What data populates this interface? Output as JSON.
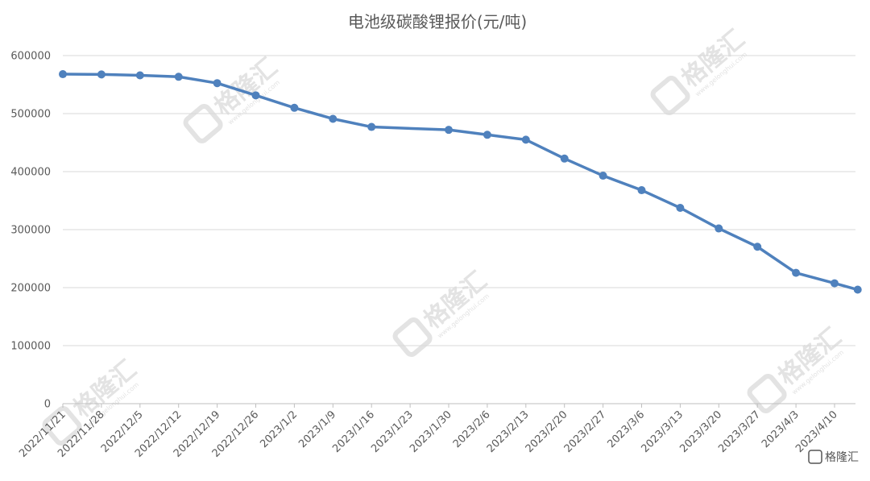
{
  "chart_data": {
    "type": "line",
    "title": "电池级碳酸锂报价(元/吨)",
    "xlabel": "",
    "ylabel": "",
    "ylim": [
      0,
      600000
    ],
    "yticks": [
      0,
      100000,
      200000,
      300000,
      400000,
      500000,
      600000
    ],
    "grid": true,
    "categories": [
      "2022/11/21",
      "2022/11/28",
      "2022/12/5",
      "2022/12/12",
      "2022/12/19",
      "2022/12/26",
      "2023/1/2",
      "2023/1/9",
      "2023/1/16",
      "2023/1/23",
      "2023/1/30",
      "2023/2/6",
      "2023/2/13",
      "2023/2/20",
      "2023/2/27",
      "2023/3/6",
      "2023/3/13",
      "2023/3/20",
      "2023/3/27",
      "2023/4/3",
      "2023/4/10"
    ],
    "series": [
      {
        "color": "#4f81bd",
        "points": [
          {
            "x": "2022/11/21",
            "y": 568000
          },
          {
            "x": "2022/11/28",
            "y": 567500
          },
          {
            "x": "2022/12/5",
            "y": 566000
          },
          {
            "x": "2022/12/12",
            "y": 563500
          },
          {
            "x": "2022/12/19",
            "y": 552500
          },
          {
            "x": "2022/12/26",
            "y": 531500
          },
          {
            "x": "2023/1/2",
            "y": 510000
          },
          {
            "x": "2023/1/9",
            "y": 491000
          },
          {
            "x": "2023/1/16",
            "y": 477000
          },
          {
            "x": "2023/1/30",
            "y": 472000
          },
          {
            "x": "2023/2/6",
            "y": 463500
          },
          {
            "x": "2023/2/13",
            "y": 455000
          },
          {
            "x": "2023/2/20",
            "y": 422500
          },
          {
            "x": "2023/2/27",
            "y": 393000
          },
          {
            "x": "2023/3/6",
            "y": 368000
          },
          {
            "x": "2023/3/13",
            "y": 337500
          },
          {
            "x": "2023/3/20",
            "y": 302000
          },
          {
            "x": "2023/3/27",
            "y": 270500
          },
          {
            "x": "2023/4/3",
            "y": 225500
          },
          {
            "x": "2023/4/10",
            "y": 207500
          },
          {
            "x": "2023/4/14",
            "y": 196500
          }
        ]
      }
    ]
  },
  "watermark": {
    "text": "格隆汇",
    "url_text": "www.gelonghui.com",
    "corner_logo": "格隆汇"
  }
}
